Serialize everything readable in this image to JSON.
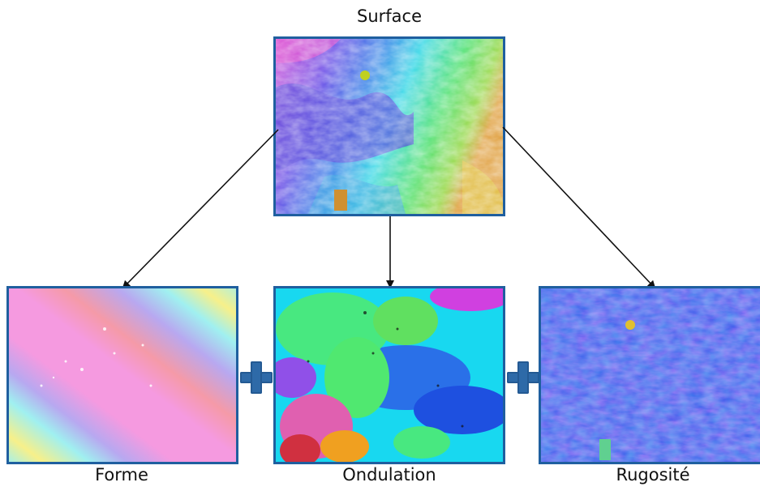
{
  "diagram": {
    "top": {
      "label": "Surface"
    },
    "components": [
      {
        "label": "Forme"
      },
      {
        "label": "Ondulation"
      },
      {
        "label": "Rugosité"
      }
    ],
    "operator": "+",
    "colors": {
      "panel_border": "#1f5f9f",
      "plus_sign": "#2e6aa8",
      "arrow": "#111111"
    }
  }
}
